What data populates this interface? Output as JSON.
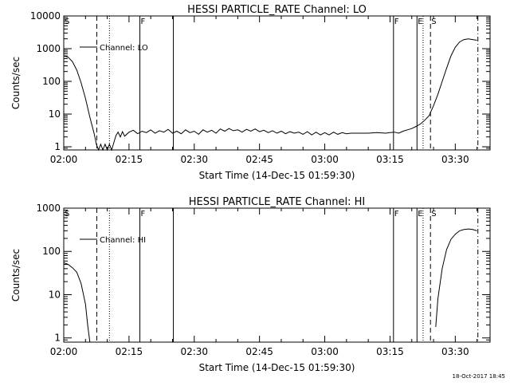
{
  "footer": {
    "timestamp": "18-Oct-2017 18:45"
  },
  "chart_data": [
    {
      "type": "line",
      "title": "HESSI PARTICLE_RATE Channel: LO",
      "xlabel": "Start Time (14-Dec-15 01:59:30)",
      "ylabel": "Counts/sec",
      "yscale": "log",
      "xlim": [
        "02:00",
        "03:38"
      ],
      "ylim": [
        0.8,
        10000
      ],
      "x_ticks": [
        "02:00",
        "02:15",
        "02:30",
        "02:45",
        "03:00",
        "03:15",
        "03:30"
      ],
      "y_ticks": [
        "1",
        "10",
        "100",
        "1000",
        "10000"
      ],
      "legend": {
        "location": "top-left",
        "entries": [
          "Channel: LO"
        ]
      },
      "markers": [
        {
          "time": "02:00",
          "label": "S",
          "style": "solid"
        },
        {
          "time": "02:07.6",
          "label": "",
          "style": "dashed"
        },
        {
          "time": "02:10.5",
          "label": "",
          "style": "dotted"
        },
        {
          "time": "02:17.5",
          "label": "F",
          "style": "solid"
        },
        {
          "time": "02:25.2",
          "label": "",
          "style": "solid"
        },
        {
          "time": "03:15.8",
          "label": "F",
          "style": "solid"
        },
        {
          "time": "03:21.2",
          "label": "E",
          "style": "solid"
        },
        {
          "time": "03:22.6",
          "label": "",
          "style": "dotted"
        },
        {
          "time": "03:24.3",
          "label": "S",
          "style": "dashed"
        },
        {
          "time": "03:35.2",
          "label": "",
          "style": "dashdot"
        }
      ],
      "series": [
        {
          "name": "Channel: LO",
          "points": [
            [
              "02:00",
              600
            ],
            [
              "02:01",
              550
            ],
            [
              "02:02",
              400
            ],
            [
              "02:03",
              220
            ],
            [
              "02:04",
              90
            ],
            [
              "02:05",
              30
            ],
            [
              "02:06",
              8
            ],
            [
              "02:07",
              2.5
            ],
            [
              "02:07.5",
              1.2
            ],
            [
              "02:08",
              0.8
            ],
            [
              "02:08.5",
              1.2
            ],
            [
              "02:09",
              0.8
            ],
            [
              "02:09.5",
              1.2
            ],
            [
              "02:10",
              0.8
            ],
            [
              "02:10.5",
              1.2
            ],
            [
              "02:11",
              0.8
            ],
            [
              "02:12",
              2.2
            ],
            [
              "02:12.5",
              2.8
            ],
            [
              "02:13",
              2.0
            ],
            [
              "02:13.5",
              2.9
            ],
            [
              "02:14",
              2.1
            ],
            [
              "02:15",
              2.8
            ],
            [
              "02:16",
              3.2
            ],
            [
              "02:17",
              2.5
            ],
            [
              "02:18",
              3.0
            ],
            [
              "02:19",
              2.7
            ],
            [
              "02:20",
              3.3
            ],
            [
              "02:21",
              2.6
            ],
            [
              "02:22",
              3.1
            ],
            [
              "02:23",
              2.8
            ],
            [
              "02:24",
              3.4
            ],
            [
              "02:25",
              2.6
            ],
            [
              "02:26",
              3.0
            ],
            [
              "02:27",
              2.5
            ],
            [
              "02:28",
              3.3
            ],
            [
              "02:29",
              2.7
            ],
            [
              "02:30",
              3.0
            ],
            [
              "02:31",
              2.4
            ],
            [
              "02:32",
              3.3
            ],
            [
              "02:33",
              2.8
            ],
            [
              "02:34",
              3.2
            ],
            [
              "02:35",
              2.6
            ],
            [
              "02:36",
              3.5
            ],
            [
              "02:37",
              3.0
            ],
            [
              "02:38",
              3.6
            ],
            [
              "02:39",
              3.1
            ],
            [
              "02:40",
              3.3
            ],
            [
              "02:41",
              2.8
            ],
            [
              "02:42",
              3.4
            ],
            [
              "02:43",
              3.0
            ],
            [
              "02:44",
              3.5
            ],
            [
              "02:45",
              2.9
            ],
            [
              "02:46",
              3.2
            ],
            [
              "02:47",
              2.7
            ],
            [
              "02:48",
              3.1
            ],
            [
              "02:49",
              2.6
            ],
            [
              "02:50",
              3.0
            ],
            [
              "02:51",
              2.5
            ],
            [
              "02:52",
              2.9
            ],
            [
              "02:53",
              2.6
            ],
            [
              "02:54",
              2.8
            ],
            [
              "02:55",
              2.4
            ],
            [
              "02:56",
              2.9
            ],
            [
              "02:57",
              2.3
            ],
            [
              "02:58",
              2.8
            ],
            [
              "02:59",
              2.3
            ],
            [
              "03:00",
              2.7
            ],
            [
              "03:01",
              2.3
            ],
            [
              "03:02",
              2.8
            ],
            [
              "03:03",
              2.4
            ],
            [
              "03:04",
              2.7
            ],
            [
              "03:05",
              2.5
            ],
            [
              "03:06",
              2.6
            ],
            [
              "03:08",
              2.6
            ],
            [
              "03:10",
              2.6
            ],
            [
              "03:12",
              2.7
            ],
            [
              "03:14",
              2.6
            ],
            [
              "03:15",
              2.7
            ],
            [
              "03:16",
              2.8
            ],
            [
              "03:17",
              2.6
            ],
            [
              "03:18",
              3.0
            ],
            [
              "03:19",
              3.3
            ],
            [
              "03:20",
              3.6
            ],
            [
              "03:21",
              4.2
            ],
            [
              "03:22",
              5
            ],
            [
              "03:23",
              6.5
            ],
            [
              "03:24",
              9
            ],
            [
              "03:25",
              18
            ],
            [
              "03:26",
              40
            ],
            [
              "03:27",
              100
            ],
            [
              "03:28",
              250
            ],
            [
              "03:29",
              600
            ],
            [
              "03:30",
              1100
            ],
            [
              "03:31",
              1600
            ],
            [
              "03:32",
              1900
            ],
            [
              "03:33",
              2000
            ],
            [
              "03:34",
              1900
            ],
            [
              "03:35",
              1800
            ]
          ]
        }
      ]
    },
    {
      "type": "line",
      "title": "HESSI PARTICLE_RATE Channel: HI",
      "xlabel": "Start Time (14-Dec-15 01:59:30)",
      "ylabel": "Counts/sec",
      "yscale": "log",
      "xlim": [
        "02:00",
        "03:38"
      ],
      "ylim": [
        0.8,
        1000
      ],
      "x_ticks": [
        "02:00",
        "02:15",
        "02:30",
        "02:45",
        "03:00",
        "03:15",
        "03:30"
      ],
      "y_ticks": [
        "1",
        "10",
        "100",
        "1000"
      ],
      "legend": {
        "location": "top-left",
        "entries": [
          "Channel: HI"
        ]
      },
      "markers": [
        {
          "time": "02:00",
          "label": "S",
          "style": "solid"
        },
        {
          "time": "02:07.6",
          "label": "",
          "style": "dashed"
        },
        {
          "time": "02:10.5",
          "label": "",
          "style": "dotted"
        },
        {
          "time": "02:17.5",
          "label": "F",
          "style": "solid"
        },
        {
          "time": "02:25.2",
          "label": "",
          "style": "solid"
        },
        {
          "time": "03:15.8",
          "label": "F",
          "style": "solid"
        },
        {
          "time": "03:21.2",
          "label": "E",
          "style": "solid"
        },
        {
          "time": "03:22.6",
          "label": "",
          "style": "dotted"
        },
        {
          "time": "03:24.3",
          "label": "S",
          "style": "dashed"
        },
        {
          "time": "03:35.2",
          "label": "",
          "style": "dashdot"
        }
      ],
      "series": [
        {
          "name": "Channel: HI",
          "segments": [
            [
              [
                "02:00",
                55
              ],
              [
                "02:01",
                50
              ],
              [
                "02:02",
                42
              ],
              [
                "02:03",
                33
              ],
              [
                "02:04",
                18
              ],
              [
                "02:05",
                6
              ],
              [
                "02:05.5",
                2
              ],
              [
                "02:06",
                0.8
              ]
            ],
            [
              [
                "03:25.5",
                1.8
              ],
              [
                "03:26",
                8
              ],
              [
                "03:27",
                40
              ],
              [
                "03:28",
                110
              ],
              [
                "03:29",
                190
              ],
              [
                "03:30",
                250
              ],
              [
                "03:31",
                300
              ],
              [
                "03:32",
                320
              ],
              [
                "03:33",
                330
              ],
              [
                "03:34",
                320
              ],
              [
                "03:35",
                300
              ]
            ]
          ]
        }
      ]
    }
  ]
}
